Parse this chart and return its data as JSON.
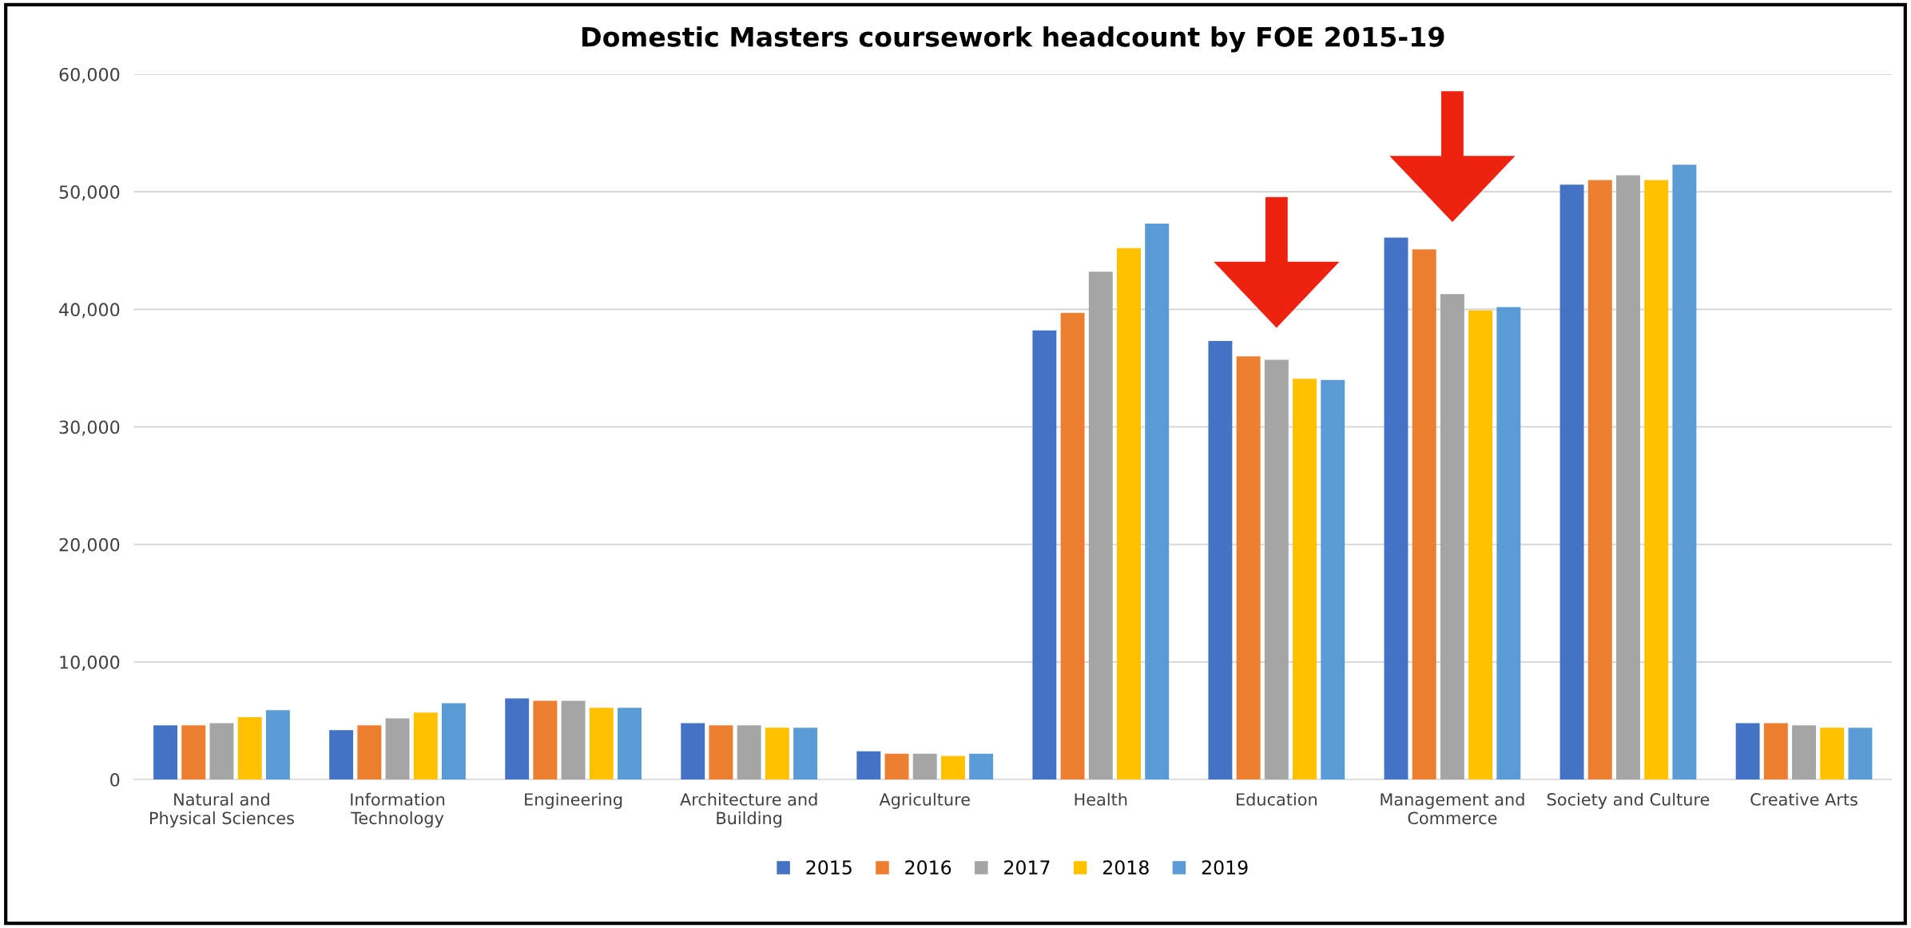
{
  "chart_data": {
    "type": "bar",
    "title": "Domestic Masters coursework headcount by FOE 2015-19",
    "categories": [
      "Natural and\nPhysical Sciences",
      "Information\nTechnology",
      "Engineering",
      "Architecture and\nBuilding",
      "Agriculture",
      "Health",
      "Education",
      "Management and\nCommerce",
      "Society and Culture",
      "Creative Arts"
    ],
    "series": [
      {
        "name": "2015",
        "color": "#4472c4",
        "values": [
          4600,
          4200,
          6900,
          4800,
          2400,
          38200,
          37300,
          46100,
          50600,
          4800
        ]
      },
      {
        "name": "2016",
        "color": "#ed7d31",
        "values": [
          4600,
          4600,
          6700,
          4600,
          2200,
          39700,
          36000,
          45100,
          51000,
          4800
        ]
      },
      {
        "name": "2017",
        "color": "#a5a5a5",
        "values": [
          4800,
          5200,
          6700,
          4600,
          2200,
          43200,
          35700,
          41300,
          51400,
          4600
        ]
      },
      {
        "name": "2018",
        "color": "#ffc000",
        "values": [
          5300,
          5700,
          6100,
          4400,
          2000,
          45200,
          34100,
          39900,
          51000,
          4400
        ]
      },
      {
        "name": "2019",
        "color": "#5b9bd5",
        "values": [
          5900,
          6500,
          6100,
          4400,
          2200,
          47300,
          34000,
          40200,
          52300,
          4400
        ]
      }
    ],
    "ylim": [
      0,
      60000
    ],
    "yticks": [
      {
        "value": 0,
        "label": "0"
      },
      {
        "value": 10000,
        "label": "10,000"
      },
      {
        "value": 20000,
        "label": "20,000"
      },
      {
        "value": 30000,
        "label": "30,000"
      },
      {
        "value": 40000,
        "label": "40,000"
      },
      {
        "value": 50000,
        "label": "50,000"
      },
      {
        "value": 60000,
        "label": "60,000"
      }
    ],
    "grid": "y",
    "legend": "bottom"
  }
}
